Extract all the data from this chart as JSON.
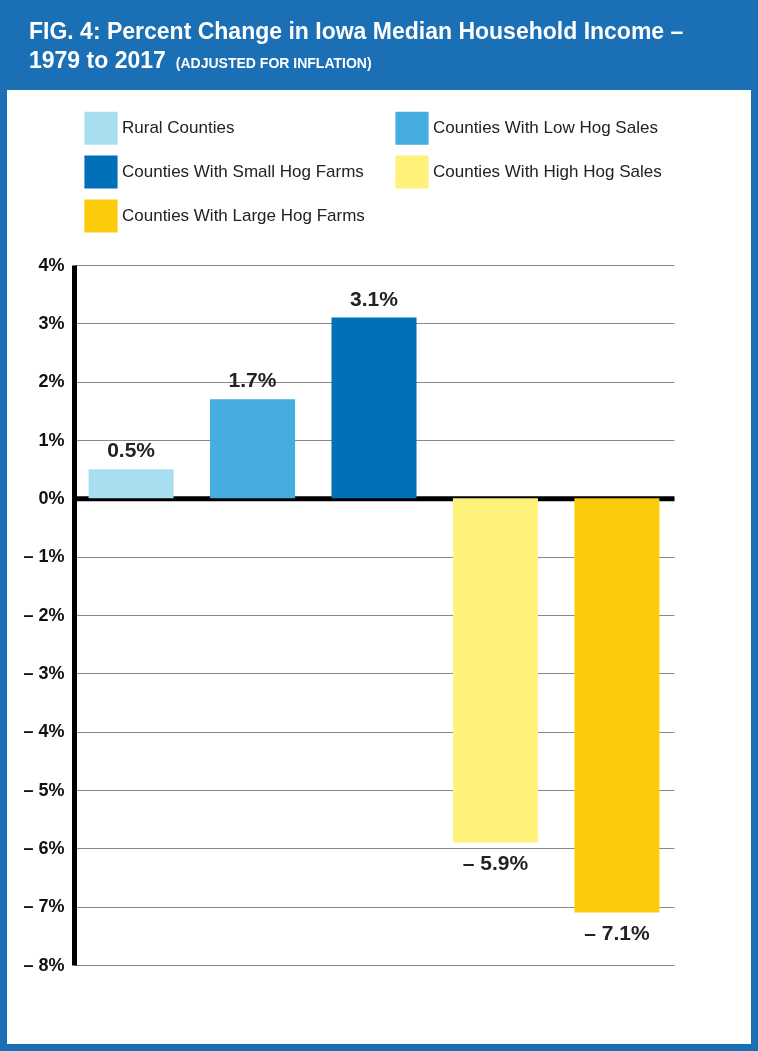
{
  "chart_data": {
    "type": "bar",
    "title": "FIG. 4: Percent Change in Iowa Median Household Income – 1979 to 2017",
    "subtitle": "(ADJUSTED FOR INFLATION)",
    "categories": [
      null,
      null,
      null,
      null,
      null
    ],
    "series": [
      {
        "name": "Rural Counties",
        "color": "#a9def0",
        "values": [
          0.5,
          null,
          null,
          null,
          null
        ],
        "value_labels": [
          "0.5%",
          null,
          null,
          null,
          null
        ]
      },
      {
        "name": "Counties With Low Hog Sales",
        "color": "#45ade0",
        "values": [
          null,
          1.7,
          null,
          null,
          null
        ],
        "value_labels": [
          null,
          "1.7%",
          null,
          null,
          null
        ]
      },
      {
        "name": "Counties With Small Hog Farms",
        "color": "#0070b8",
        "values": [
          null,
          null,
          3.1,
          null,
          null
        ],
        "value_labels": [
          null,
          null,
          "3.1%",
          null,
          null
        ]
      },
      {
        "name": "Counties With High Hog Sales",
        "color": "#fff27a",
        "values": [
          null,
          null,
          null,
          -5.9,
          null
        ],
        "value_labels": [
          null,
          null,
          null,
          "– 5.9%",
          null
        ]
      },
      {
        "name": "Counties With Large Hog Farms",
        "color": "#fccc0a",
        "values": [
          null,
          null,
          null,
          null,
          -7.1
        ],
        "value_labels": [
          null,
          null,
          null,
          null,
          "– 7.1%"
        ]
      }
    ],
    "ylim": [
      -8,
      4
    ],
    "yticks": [
      {
        "value": -8,
        "label": "– 8%"
      },
      {
        "value": -7,
        "label": "– 7%"
      },
      {
        "value": -6,
        "label": "– 6%"
      },
      {
        "value": -5,
        "label": "– 5%"
      },
      {
        "value": -4,
        "label": "– 4%"
      },
      {
        "value": -3,
        "label": "– 3%"
      },
      {
        "value": -2,
        "label": "– 2%"
      },
      {
        "value": -1,
        "label": "– 1%"
      },
      {
        "value": 0,
        "label": "0%"
      },
      {
        "value": 1,
        "label": "1%"
      },
      {
        "value": 2,
        "label": "2%"
      },
      {
        "value": 3,
        "label": "3%"
      },
      {
        "value": 4,
        "label": "4%"
      }
    ],
    "grid": "y",
    "legend": "top",
    "tick_labels": "y"
  }
}
